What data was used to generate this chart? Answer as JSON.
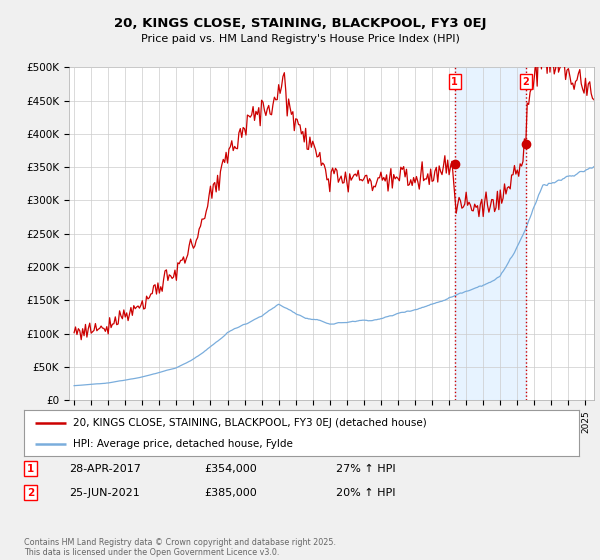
{
  "title": "20, KINGS CLOSE, STAINING, BLACKPOOL, FY3 0EJ",
  "subtitle": "Price paid vs. HM Land Registry's House Price Index (HPI)",
  "ylim": [
    0,
    500000
  ],
  "yticks": [
    0,
    50000,
    100000,
    150000,
    200000,
    250000,
    300000,
    350000,
    400000,
    450000,
    500000
  ],
  "ytick_labels": [
    "£0",
    "£50K",
    "£100K",
    "£150K",
    "£200K",
    "£250K",
    "£300K",
    "£350K",
    "£400K",
    "£450K",
    "£500K"
  ],
  "property_color": "#cc0000",
  "hpi_color": "#7aaddc",
  "vline_color": "#cc0000",
  "shade_color": "#ddeeff",
  "sale1_x": 2017.33,
  "sale1_y": 354000,
  "sale2_x": 2021.5,
  "sale2_y": 385000,
  "legend_line1": "20, KINGS CLOSE, STAINING, BLACKPOOL, FY3 0EJ (detached house)",
  "legend_line2": "HPI: Average price, detached house, Fylde",
  "event1_date": "28-APR-2017",
  "event1_price": "£354,000",
  "event1_hpi": "27% ↑ HPI",
  "event2_date": "25-JUN-2021",
  "event2_price": "£385,000",
  "event2_hpi": "20% ↑ HPI",
  "footer": "Contains HM Land Registry data © Crown copyright and database right 2025.\nThis data is licensed under the Open Government Licence v3.0.",
  "background_color": "#f0f0f0",
  "plot_bg_color": "#ffffff",
  "grid_color": "#cccccc",
  "xlim_left": 1994.7,
  "xlim_right": 2025.5
}
